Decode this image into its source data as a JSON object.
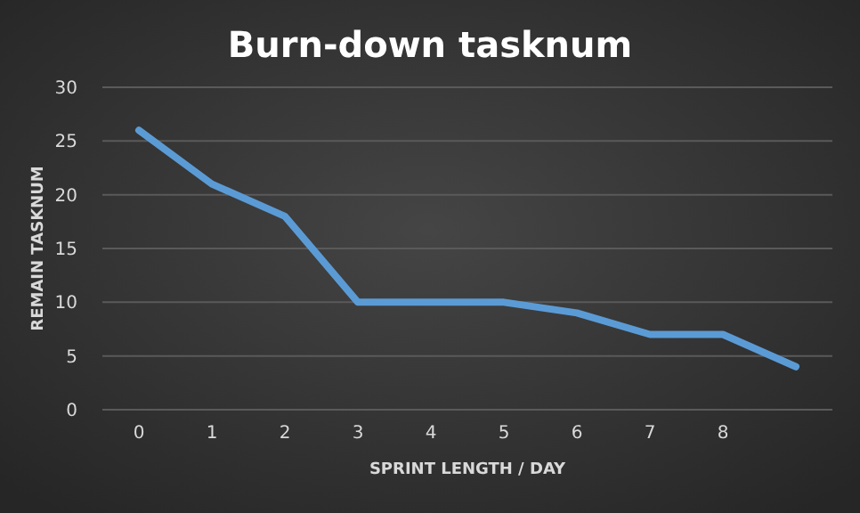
{
  "chart_data": {
    "type": "line",
    "title": "Burn-down tasknum",
    "xlabel": "SPRINT LENGTH / DAY",
    "ylabel": "REMAIN TASKNUM",
    "categories": [
      "0",
      "1",
      "2",
      "3",
      "4",
      "5",
      "6",
      "7",
      "8",
      null
    ],
    "series": [
      {
        "color": "#5b9bd5",
        "values": [
          26,
          21,
          18,
          10,
          10,
          10,
          9,
          7,
          7,
          4
        ]
      }
    ],
    "ylim": [
      0,
      30
    ],
    "yticks": [
      0,
      5,
      10,
      15,
      20,
      25,
      30
    ],
    "grid": "y",
    "marker": "none",
    "line_style": "solid"
  }
}
